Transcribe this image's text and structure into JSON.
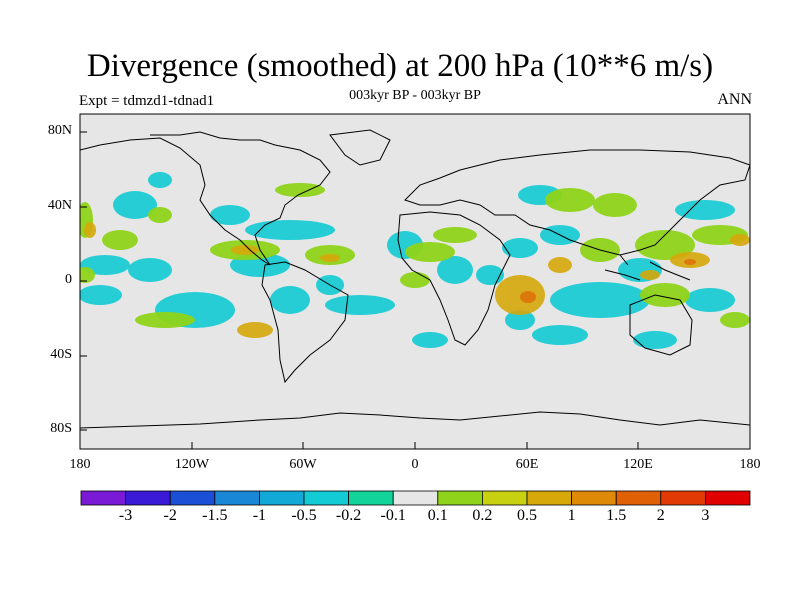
{
  "chart_data": {
    "type": "map",
    "title": "Divergence (smoothed) at 200 hPa (10**6 m/s)",
    "subtitle": "003kyr BP - 003kyr BP",
    "left_label": "Expt = tdmzd1-tdnad1",
    "right_label": "ANN",
    "lon_ticks": [
      "180",
      "120W",
      "60W",
      "0",
      "60E",
      "120E",
      "180"
    ],
    "lat_ticks": [
      "80N",
      "40N",
      "0",
      "40S",
      "80S"
    ],
    "lon_range": [
      -180,
      180
    ],
    "lat_range": [
      -90,
      90
    ],
    "colorbar": {
      "labels": [
        "-3",
        "-2",
        "-1.5",
        "-1",
        "-0.5",
        "-0.2",
        "-0.1",
        "0.1",
        "0.2",
        "0.5",
        "1",
        "1.5",
        "2",
        "3"
      ],
      "colors": [
        "#7a1ad6",
        "#3a1ad6",
        "#1a4fd6",
        "#1a86d6",
        "#12a9d6",
        "#12cbd4",
        "#12d49a",
        "#e6e6e6",
        "#8fd41a",
        "#c8d10f",
        "#d6a80a",
        "#df8a06",
        "#e06105",
        "#e23a05",
        "#e00000"
      ]
    }
  }
}
